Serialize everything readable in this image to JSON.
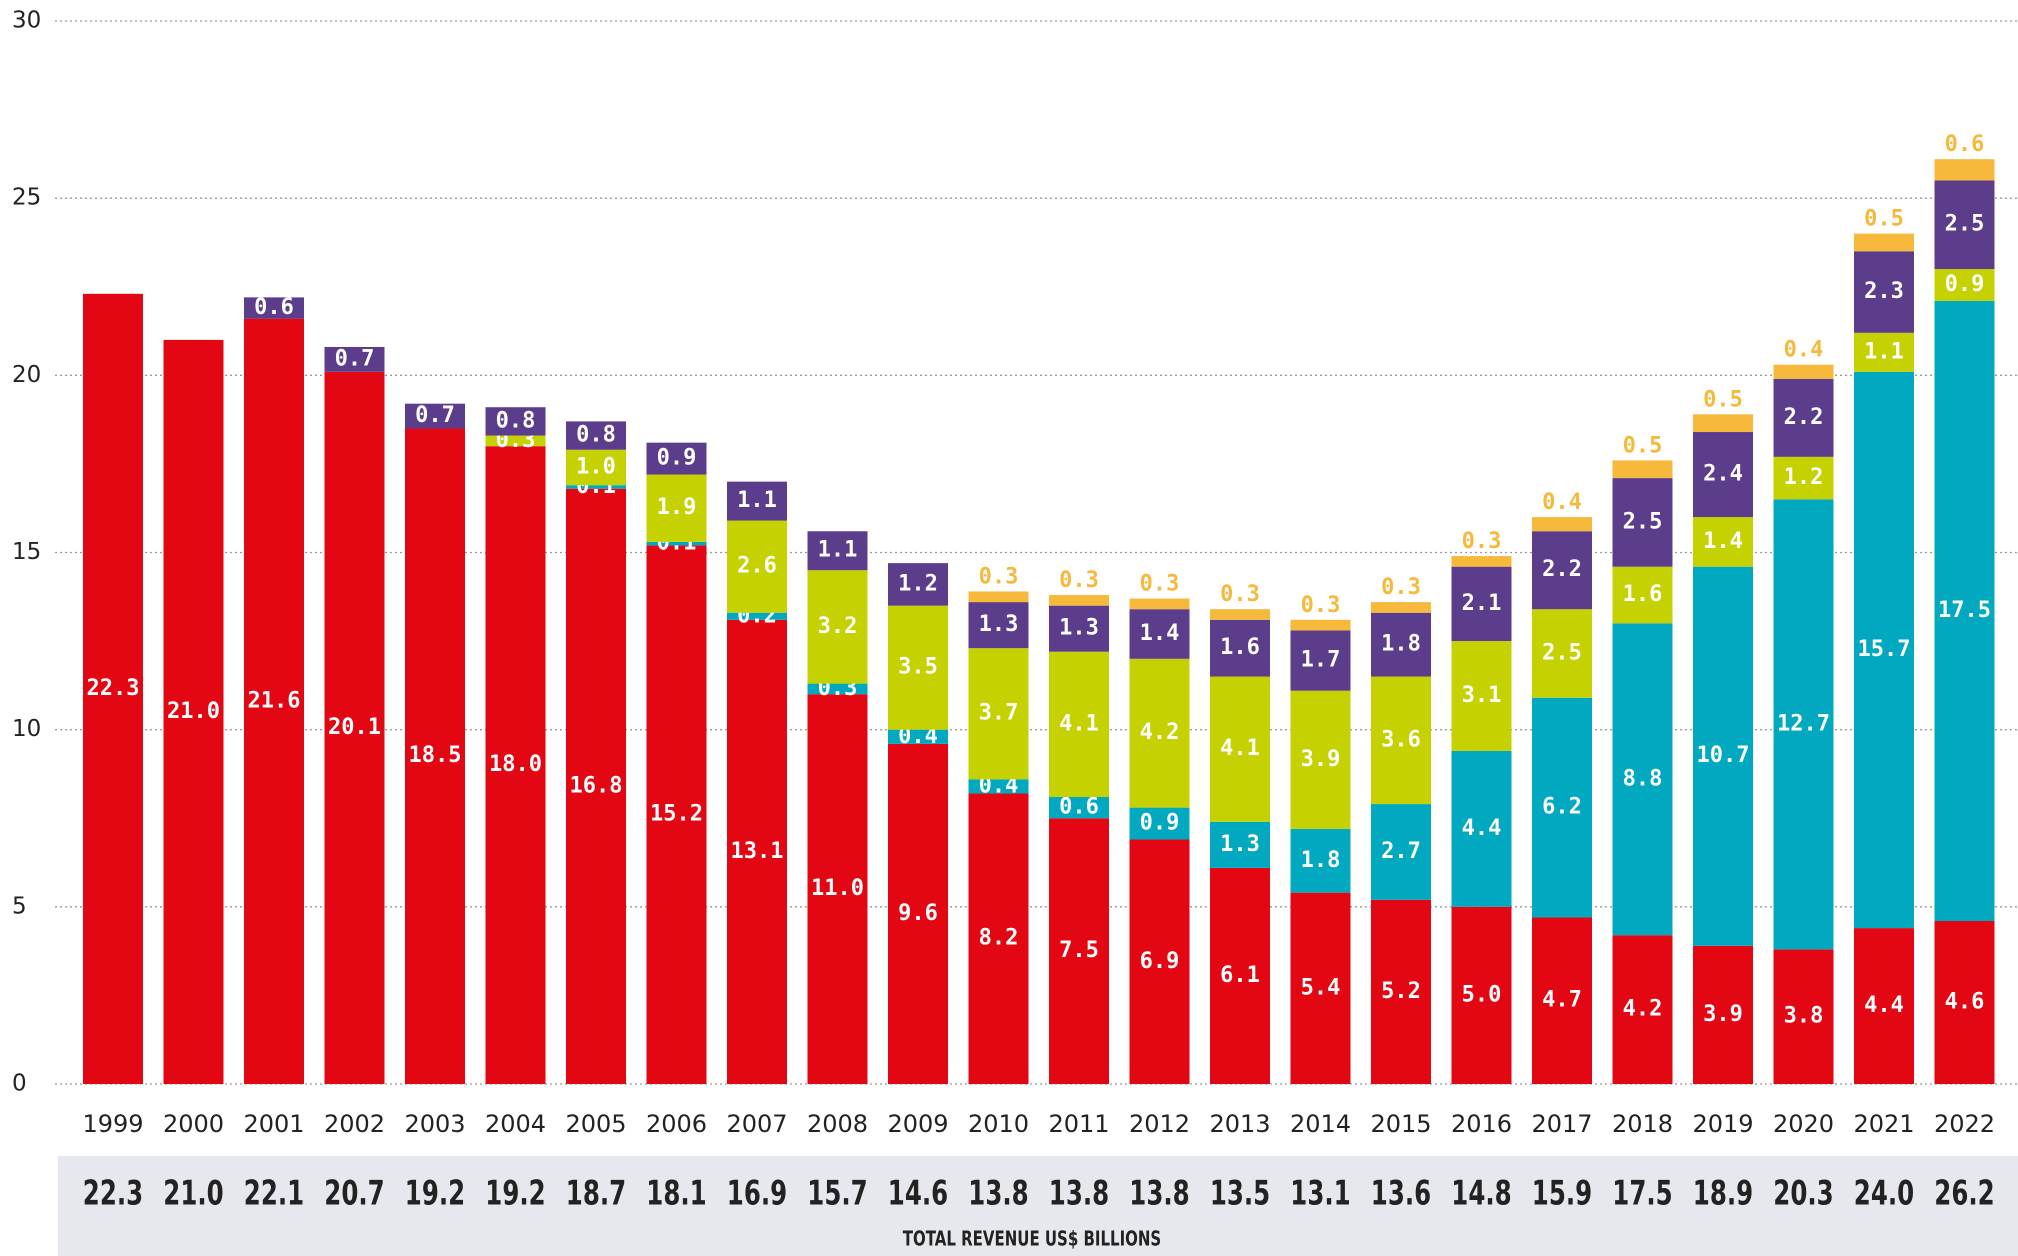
{
  "chart_data": {
    "type": "stacked_bar",
    "categories": [
      "1999",
      "2000",
      "2001",
      "2002",
      "2003",
      "2004",
      "2005",
      "2006",
      "2007",
      "2008",
      "2009",
      "2010",
      "2011",
      "2012",
      "2013",
      "2014",
      "2015",
      "2016",
      "2017",
      "2018",
      "2019",
      "2020",
      "2021",
      "2022"
    ],
    "series": [
      {
        "color": "#e30613",
        "values": [
          22.3,
          21.0,
          21.6,
          20.1,
          18.5,
          18.0,
          16.8,
          15.2,
          13.1,
          11.0,
          9.6,
          8.2,
          7.5,
          6.9,
          6.1,
          5.4,
          5.2,
          5.0,
          4.7,
          4.2,
          3.9,
          3.8,
          4.4,
          4.6
        ],
        "value_labels": [
          "22.3",
          "21.0",
          "21.6",
          "20.1",
          "18.5",
          "18.0",
          "16.8",
          "15.2",
          "13.1",
          "11.0",
          "9.6",
          "8.2",
          "7.5",
          "6.9",
          "6.1",
          "5.4",
          "5.2",
          "5.0",
          "4.7",
          "4.2",
          "3.9",
          "3.8",
          "4.4",
          "4.6"
        ]
      },
      {
        "color": "#00a9c0",
        "values": [
          null,
          null,
          null,
          null,
          null,
          null,
          0.1,
          0.1,
          0.2,
          0.3,
          0.4,
          0.4,
          0.6,
          0.9,
          1.3,
          1.8,
          2.7,
          4.4,
          6.2,
          8.8,
          10.7,
          12.7,
          15.7,
          17.5
        ],
        "value_labels": [
          null,
          null,
          null,
          null,
          null,
          null,
          "0.1",
          "0.1",
          "0.2",
          "0.3",
          "0.4",
          "0.4",
          "0.6",
          "0.9",
          "1.3",
          "1.8",
          "2.7",
          "4.4",
          "6.2",
          "8.8",
          "10.7",
          "12.7",
          "15.7",
          "17.5"
        ]
      },
      {
        "color": "#c5d100",
        "values": [
          null,
          null,
          null,
          null,
          null,
          0.3,
          1.0,
          1.9,
          2.6,
          3.2,
          3.5,
          3.7,
          4.1,
          4.2,
          4.1,
          3.9,
          3.6,
          3.1,
          2.5,
          1.6,
          1.4,
          1.2,
          1.1,
          0.9
        ],
        "value_labels": [
          null,
          null,
          null,
          null,
          null,
          "0.3",
          "1.0",
          "1.9",
          "2.6",
          "3.2",
          "3.5",
          "3.7",
          "4.1",
          "4.2",
          "4.1",
          "3.9",
          "3.6",
          "3.1",
          "2.5",
          "1.6",
          "1.4",
          "1.2",
          "1.1",
          "0.9"
        ]
      },
      {
        "color": "#5b3d8c",
        "values": [
          null,
          null,
          0.6,
          0.7,
          0.7,
          0.8,
          0.8,
          0.9,
          1.1,
          1.1,
          1.2,
          1.3,
          1.3,
          1.4,
          1.6,
          1.7,
          1.8,
          2.1,
          2.2,
          2.5,
          2.4,
          2.2,
          2.3,
          2.5
        ],
        "value_labels": [
          null,
          null,
          "0.6",
          "0.7",
          "0.7",
          "0.8",
          "0.8",
          "0.9",
          "1.1",
          "1.1",
          "1.2",
          "1.3",
          "1.3",
          "1.4",
          "1.6",
          "1.7",
          "1.8",
          "2.1",
          "2.2",
          "2.5",
          "2.4",
          "2.2",
          "2.3",
          "2.5"
        ]
      },
      {
        "color": "#f6b93b",
        "values": [
          null,
          null,
          null,
          null,
          null,
          null,
          null,
          null,
          null,
          null,
          null,
          0.3,
          0.3,
          0.3,
          0.3,
          0.3,
          0.3,
          0.3,
          0.4,
          0.5,
          0.5,
          0.4,
          0.5,
          0.6
        ],
        "value_labels": [
          null,
          null,
          null,
          null,
          null,
          null,
          null,
          null,
          null,
          null,
          null,
          "0.3",
          "0.3",
          "0.3",
          "0.3",
          "0.3",
          "0.3",
          "0.3",
          "0.4",
          "0.5",
          "0.5",
          "0.4",
          "0.5",
          "0.6"
        ]
      }
    ],
    "totals": [
      "22.3",
      "21.0",
      "22.1",
      "20.7",
      "19.2",
      "19.2",
      "18.7",
      "18.1",
      "16.9",
      "15.7",
      "14.6",
      "13.8",
      "13.8",
      "13.8",
      "13.5",
      "13.1",
      "13.6",
      "14.8",
      "15.9",
      "17.5",
      "18.9",
      "20.3",
      "24.0",
      "26.2"
    ],
    "xlabel": "TOTAL REVENUE US$ BILLIONS",
    "ylim": [
      0,
      30
    ],
    "yticks": [
      0,
      5,
      10,
      15,
      20,
      25,
      30
    ],
    "grid": true
  }
}
